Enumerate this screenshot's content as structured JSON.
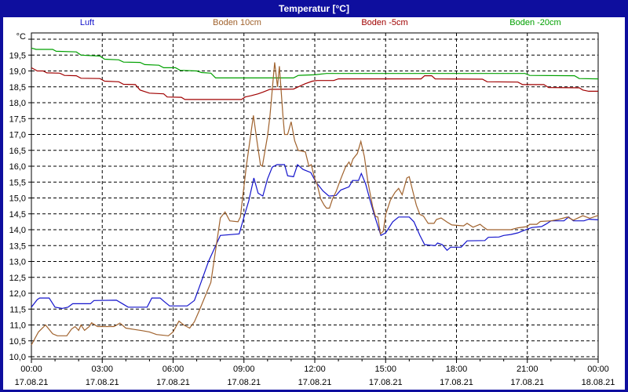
{
  "window": {
    "title": "Temperatur [°C]"
  },
  "colors": {
    "titlebar": "#0e0e9e",
    "border": "#0e0e9e",
    "background": "#ffffff",
    "grid": "#000000",
    "luft": "#1414cc",
    "boden10": "#a0622d",
    "boden5": "#a00000",
    "boden20": "#00a000"
  },
  "legend": {
    "items": [
      {
        "label": "Luft",
        "color": "#1414cc"
      },
      {
        "label": "Boden 10cm",
        "color": "#a0622d"
      },
      {
        "label": "Boden -5cm",
        "color": "#a00000"
      },
      {
        "label": "Boden -20cm",
        "color": "#00a000"
      }
    ]
  },
  "chart_data": {
    "type": "line",
    "title": "Temperatur [°C]",
    "ylabel": "°C",
    "ylim": [
      10,
      20
    ],
    "y_step": 0.5,
    "y_label_max": 19.5,
    "decimal_comma": true,
    "xlim": [
      0,
      24
    ],
    "x_major_step": 3,
    "x_minor_step": 1,
    "grid": true,
    "legend_position": "top",
    "x_ticks": [
      {
        "t": 0,
        "time": "00:00",
        "date": "17.08.21"
      },
      {
        "t": 3,
        "time": "03:00",
        "date": "17.08.21"
      },
      {
        "t": 6,
        "time": "06:00",
        "date": "17.08.21"
      },
      {
        "t": 9,
        "time": "09:00",
        "date": "17.08.21"
      },
      {
        "t": 12,
        "time": "12:00",
        "date": "17.08.21"
      },
      {
        "t": 15,
        "time": "15:00",
        "date": "17.08.21"
      },
      {
        "t": 18,
        "time": "18:00",
        "date": "17.08.21"
      },
      {
        "t": 21,
        "time": "21:00",
        "date": "17.08.21"
      },
      {
        "t": 24,
        "time": "00:00",
        "date": "18.08.21"
      }
    ],
    "series": [
      {
        "name": "Boden -20cm",
        "color": "#00a000",
        "points": [
          [
            0,
            19.72
          ],
          [
            0.2,
            19.68
          ],
          [
            0.9,
            19.68
          ],
          [
            1.05,
            19.62
          ],
          [
            1.9,
            19.6
          ],
          [
            2.1,
            19.5
          ],
          [
            2.9,
            19.47
          ],
          [
            3.1,
            19.37
          ],
          [
            3.7,
            19.35
          ],
          [
            3.9,
            19.28
          ],
          [
            4.6,
            19.27
          ],
          [
            4.8,
            19.2
          ],
          [
            5.4,
            19.18
          ],
          [
            5.6,
            19.1
          ],
          [
            6.1,
            19.1
          ],
          [
            6.3,
            19.02
          ],
          [
            7.0,
            19.0
          ],
          [
            7.2,
            18.95
          ],
          [
            7.6,
            18.93
          ],
          [
            7.8,
            18.78
          ],
          [
            11.1,
            18.78
          ],
          [
            11.3,
            18.86
          ],
          [
            12.0,
            18.88
          ],
          [
            12.5,
            18.92
          ],
          [
            20.9,
            18.92
          ],
          [
            21.1,
            18.86
          ],
          [
            23.0,
            18.85
          ],
          [
            23.2,
            18.76
          ],
          [
            24,
            18.75
          ]
        ]
      },
      {
        "name": "Boden -5cm",
        "color": "#a00000",
        "points": [
          [
            0,
            19.1
          ],
          [
            0.25,
            19.0
          ],
          [
            0.5,
            19.0
          ],
          [
            0.65,
            18.94
          ],
          [
            1.2,
            18.93
          ],
          [
            1.4,
            18.86
          ],
          [
            1.9,
            18.85
          ],
          [
            2.1,
            18.77
          ],
          [
            2.9,
            18.76
          ],
          [
            3.1,
            18.68
          ],
          [
            3.7,
            18.66
          ],
          [
            3.9,
            18.58
          ],
          [
            4.4,
            18.57
          ],
          [
            4.6,
            18.4
          ],
          [
            5.0,
            18.3
          ],
          [
            5.6,
            18.28
          ],
          [
            5.75,
            18.18
          ],
          [
            6.35,
            18.17
          ],
          [
            6.5,
            18.1
          ],
          [
            8.9,
            18.1
          ],
          [
            9.05,
            18.18
          ],
          [
            9.3,
            18.22
          ],
          [
            9.6,
            18.28
          ],
          [
            9.8,
            18.33
          ],
          [
            10.1,
            18.42
          ],
          [
            11.1,
            18.43
          ],
          [
            11.3,
            18.5
          ],
          [
            11.6,
            18.6
          ],
          [
            11.9,
            18.68
          ],
          [
            12.1,
            18.7
          ],
          [
            12.8,
            18.7
          ],
          [
            13.0,
            18.75
          ],
          [
            16.5,
            18.75
          ],
          [
            16.65,
            18.85
          ],
          [
            16.95,
            18.85
          ],
          [
            17.1,
            18.75
          ],
          [
            19.1,
            18.74
          ],
          [
            19.3,
            18.66
          ],
          [
            20.6,
            18.65
          ],
          [
            20.8,
            18.57
          ],
          [
            21.7,
            18.57
          ],
          [
            21.9,
            18.48
          ],
          [
            23.2,
            18.47
          ],
          [
            23.35,
            18.4
          ],
          [
            23.6,
            18.36
          ],
          [
            24,
            18.36
          ]
        ]
      },
      {
        "name": "Luft",
        "color": "#1414cc",
        "points": [
          [
            0,
            11.56
          ],
          [
            0.25,
            11.8
          ],
          [
            0.35,
            11.85
          ],
          [
            0.75,
            11.85
          ],
          [
            1.0,
            11.56
          ],
          [
            1.3,
            11.52
          ],
          [
            1.55,
            11.56
          ],
          [
            1.75,
            11.67
          ],
          [
            2.5,
            11.67
          ],
          [
            2.65,
            11.77
          ],
          [
            3.6,
            11.78
          ],
          [
            3.9,
            11.65
          ],
          [
            4.1,
            11.56
          ],
          [
            4.9,
            11.56
          ],
          [
            5.1,
            11.85
          ],
          [
            5.45,
            11.85
          ],
          [
            5.6,
            11.75
          ],
          [
            5.85,
            11.6
          ],
          [
            6.6,
            11.6
          ],
          [
            6.9,
            11.77
          ],
          [
            7.1,
            12.17
          ],
          [
            7.5,
            13.0
          ],
          [
            8.0,
            13.82
          ],
          [
            8.8,
            13.87
          ],
          [
            9.0,
            14.4
          ],
          [
            9.2,
            14.9
          ],
          [
            9.42,
            15.63
          ],
          [
            9.6,
            15.15
          ],
          [
            9.8,
            15.06
          ],
          [
            10.0,
            15.6
          ],
          [
            10.2,
            15.97
          ],
          [
            10.4,
            16.05
          ],
          [
            10.72,
            16.05
          ],
          [
            10.85,
            15.7
          ],
          [
            11.1,
            15.67
          ],
          [
            11.27,
            16.05
          ],
          [
            11.5,
            15.9
          ],
          [
            11.83,
            15.8
          ],
          [
            12.05,
            15.5
          ],
          [
            12.35,
            15.22
          ],
          [
            12.6,
            15.06
          ],
          [
            12.9,
            15.08
          ],
          [
            13.1,
            15.25
          ],
          [
            13.45,
            15.35
          ],
          [
            13.6,
            15.55
          ],
          [
            13.85,
            15.55
          ],
          [
            13.97,
            15.77
          ],
          [
            14.15,
            15.45
          ],
          [
            14.35,
            14.9
          ],
          [
            14.55,
            14.4
          ],
          [
            14.8,
            13.82
          ],
          [
            15.0,
            13.9
          ],
          [
            15.3,
            14.25
          ],
          [
            15.55,
            14.4
          ],
          [
            16.0,
            14.4
          ],
          [
            16.2,
            14.25
          ],
          [
            16.45,
            13.82
          ],
          [
            16.65,
            13.53
          ],
          [
            17.1,
            13.5
          ],
          [
            17.2,
            13.58
          ],
          [
            17.4,
            13.53
          ],
          [
            17.6,
            13.35
          ],
          [
            17.75,
            13.45
          ],
          [
            18.2,
            13.45
          ],
          [
            18.45,
            13.65
          ],
          [
            19.2,
            13.66
          ],
          [
            19.35,
            13.76
          ],
          [
            19.8,
            13.77
          ],
          [
            20.0,
            13.82
          ],
          [
            20.3,
            13.85
          ],
          [
            20.6,
            13.9
          ],
          [
            21.0,
            14.02
          ],
          [
            21.2,
            14.07
          ],
          [
            21.6,
            14.1
          ],
          [
            21.8,
            14.18
          ],
          [
            22.0,
            14.28
          ],
          [
            22.55,
            14.28
          ],
          [
            22.75,
            14.4
          ],
          [
            22.95,
            14.28
          ],
          [
            23.4,
            14.28
          ],
          [
            23.6,
            14.33
          ],
          [
            24,
            14.31
          ]
        ]
      },
      {
        "name": "Boden 10cm",
        "color": "#a0622d",
        "points": [
          [
            0,
            10.37
          ],
          [
            0.3,
            10.78
          ],
          [
            0.6,
            11.0
          ],
          [
            0.9,
            10.72
          ],
          [
            1.1,
            10.66
          ],
          [
            1.5,
            10.66
          ],
          [
            1.7,
            10.87
          ],
          [
            1.85,
            10.95
          ],
          [
            2.0,
            10.83
          ],
          [
            2.1,
            11.0
          ],
          [
            2.25,
            10.83
          ],
          [
            2.45,
            10.95
          ],
          [
            2.55,
            11.07
          ],
          [
            2.8,
            10.95
          ],
          [
            3.5,
            10.95
          ],
          [
            3.75,
            11.06
          ],
          [
            4.0,
            10.9
          ],
          [
            4.35,
            10.86
          ],
          [
            4.7,
            10.82
          ],
          [
            5.0,
            10.78
          ],
          [
            5.3,
            10.7
          ],
          [
            5.8,
            10.66
          ],
          [
            6.0,
            10.78
          ],
          [
            6.25,
            11.12
          ],
          [
            6.45,
            11.0
          ],
          [
            6.7,
            10.9
          ],
          [
            6.9,
            11.1
          ],
          [
            7.1,
            11.44
          ],
          [
            7.6,
            12.34
          ],
          [
            8.0,
            14.37
          ],
          [
            8.2,
            14.56
          ],
          [
            8.4,
            14.28
          ],
          [
            8.75,
            14.25
          ],
          [
            8.85,
            14.4
          ],
          [
            9.1,
            16.0
          ],
          [
            9.4,
            17.6
          ],
          [
            9.55,
            16.8
          ],
          [
            9.7,
            16.04
          ],
          [
            9.78,
            16.0
          ],
          [
            10.0,
            16.95
          ],
          [
            10.1,
            17.56
          ],
          [
            10.3,
            19.27
          ],
          [
            10.42,
            18.5
          ],
          [
            10.5,
            19.15
          ],
          [
            10.65,
            17.6
          ],
          [
            10.72,
            17.0
          ],
          [
            10.85,
            17.0
          ],
          [
            11.0,
            17.4
          ],
          [
            11.15,
            16.8
          ],
          [
            11.3,
            16.5
          ],
          [
            11.6,
            16.45
          ],
          [
            11.75,
            16.0
          ],
          [
            11.85,
            16.05
          ],
          [
            12.0,
            15.6
          ],
          [
            12.1,
            15.43
          ],
          [
            12.25,
            14.97
          ],
          [
            12.4,
            14.77
          ],
          [
            12.5,
            14.68
          ],
          [
            12.62,
            14.68
          ],
          [
            12.75,
            14.97
          ],
          [
            12.9,
            15.2
          ],
          [
            13.1,
            15.6
          ],
          [
            13.3,
            15.97
          ],
          [
            13.45,
            16.13
          ],
          [
            13.52,
            16.02
          ],
          [
            13.62,
            16.23
          ],
          [
            13.8,
            16.4
          ],
          [
            13.95,
            16.78
          ],
          [
            14.1,
            16.3
          ],
          [
            14.25,
            15.5
          ],
          [
            14.45,
            14.73
          ],
          [
            14.57,
            14.42
          ],
          [
            14.67,
            14.4
          ],
          [
            14.78,
            13.87
          ],
          [
            14.9,
            13.95
          ],
          [
            15.0,
            14.48
          ],
          [
            15.2,
            14.93
          ],
          [
            15.4,
            15.18
          ],
          [
            15.55,
            15.3
          ],
          [
            15.7,
            15.1
          ],
          [
            15.9,
            15.63
          ],
          [
            16.0,
            15.67
          ],
          [
            16.15,
            15.22
          ],
          [
            16.3,
            14.77
          ],
          [
            16.45,
            14.48
          ],
          [
            16.6,
            14.43
          ],
          [
            16.8,
            14.2
          ],
          [
            17.05,
            14.2
          ],
          [
            17.15,
            14.32
          ],
          [
            17.35,
            14.37
          ],
          [
            17.6,
            14.24
          ],
          [
            17.8,
            14.15
          ],
          [
            18.3,
            14.12
          ],
          [
            18.45,
            14.2
          ],
          [
            18.7,
            14.08
          ],
          [
            19.0,
            14.17
          ],
          [
            19.15,
            14.08
          ],
          [
            19.3,
            14.0
          ],
          [
            20.3,
            14.0
          ],
          [
            20.6,
            14.06
          ],
          [
            21.0,
            14.1
          ],
          [
            21.1,
            14.17
          ],
          [
            21.4,
            14.17
          ],
          [
            21.55,
            14.26
          ],
          [
            22.0,
            14.28
          ],
          [
            22.3,
            14.32
          ],
          [
            22.7,
            14.4
          ],
          [
            22.95,
            14.3
          ],
          [
            23.35,
            14.44
          ],
          [
            23.65,
            14.36
          ],
          [
            24,
            14.45
          ]
        ]
      }
    ]
  }
}
